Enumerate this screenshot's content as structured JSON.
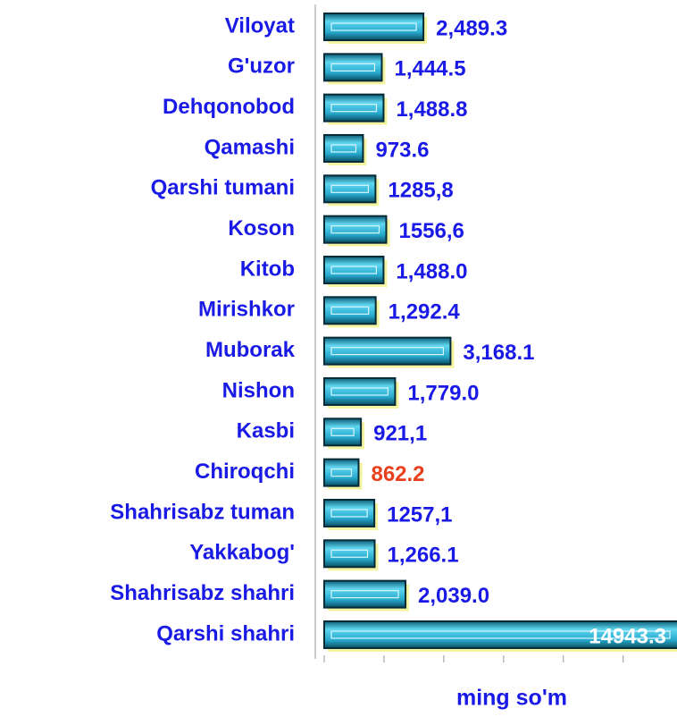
{
  "chart_data": {
    "type": "hbar",
    "categories": [
      "Viloyat",
      "G'uzor",
      "Dehqonobod",
      "Qamashi",
      "Qarshi tumani",
      "Koson",
      "Kitob",
      "Mirishkor",
      "Muborak",
      "Nishon",
      "Kasbi",
      "Chiroqchi",
      "Shahrisabz tuman",
      "Yakkabog'",
      "Shahrisabz shahri",
      "Qarshi shahri"
    ],
    "values": [
      2489.3,
      1444.5,
      1488.8,
      973.6,
      1285.8,
      1556.6,
      1488.0,
      1292.4,
      3168.1,
      1779.0,
      921.1,
      862.2,
      1257.1,
      1266.1,
      2039.0,
      14943.3
    ],
    "value_labels": [
      "2,489.3",
      "1,444.5",
      "1,488.8",
      "973.6",
      "1285,8",
      "1556,6",
      "1,488.0",
      "1,292.4",
      "3,168.1",
      "1,779.0",
      "921,1",
      "862.2",
      "1257,1",
      "1,266.1",
      "2,039.0",
      "14943.3"
    ],
    "value_label_colors": [
      "#1a1ae6",
      "#1a1ae6",
      "#1a1ae6",
      "#1a1ae6",
      "#1a1ae6",
      "#1a1ae6",
      "#1a1ae6",
      "#1a1ae6",
      "#1a1ae6",
      "#1a1ae6",
      "#1a1ae6",
      "#e8401c",
      "#1a1ae6",
      "#1a1ae6",
      "#1a1ae6",
      "#ffffff"
    ],
    "color": "#29b4d6",
    "x_label": "ming so'm",
    "xlim": [
      0,
      8850
    ],
    "xticks": [
      0,
      1500,
      3000,
      4500,
      6000,
      7500
    ]
  }
}
